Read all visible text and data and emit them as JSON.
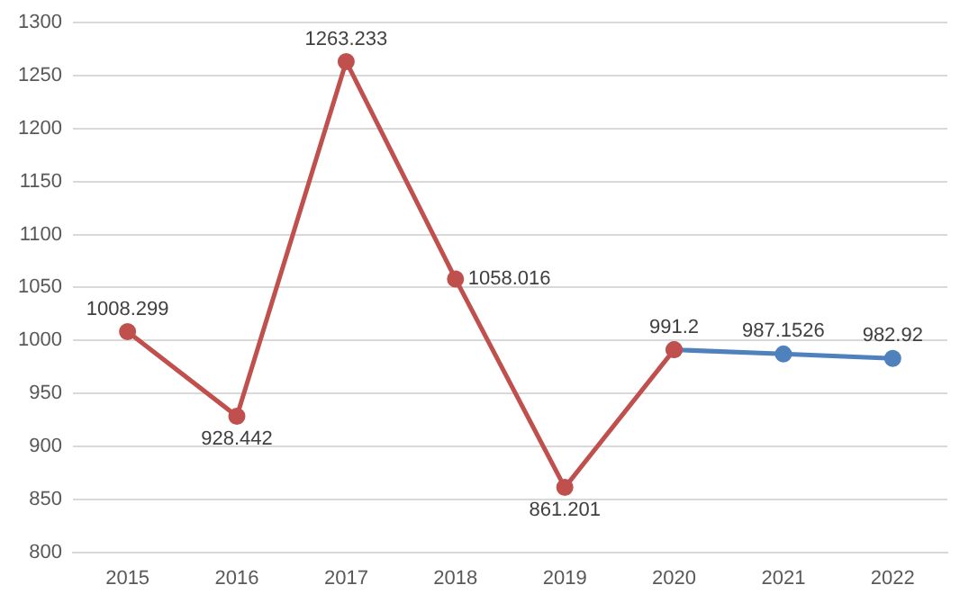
{
  "chart_data": {
    "type": "line",
    "categories": [
      "2015",
      "2016",
      "2017",
      "2018",
      "2019",
      "2020",
      "2021",
      "2022"
    ],
    "series": [
      {
        "color": "#c0504d",
        "values": [
          1008.299,
          928.442,
          1263.233,
          1058.016,
          861.201,
          991.2,
          null,
          null
        ],
        "value_labels": [
          "1008.299",
          "928.442",
          "1263.233",
          "1058.016",
          "861.201",
          "991.2",
          null,
          null
        ]
      },
      {
        "color": "#4f81bd",
        "values": [
          null,
          null,
          null,
          null,
          null,
          991.2,
          987.1526,
          982.92
        ],
        "value_labels": [
          null,
          null,
          null,
          null,
          null,
          null,
          "987.1526",
          "982.92"
        ]
      }
    ],
    "ylim": [
      800,
      1300
    ],
    "yticks": [
      800,
      850,
      900,
      950,
      1000,
      1050,
      1100,
      1150,
      1200,
      1250,
      1300
    ],
    "grid": "y",
    "legend": false,
    "marker": "circle",
    "line_style": "solid"
  }
}
